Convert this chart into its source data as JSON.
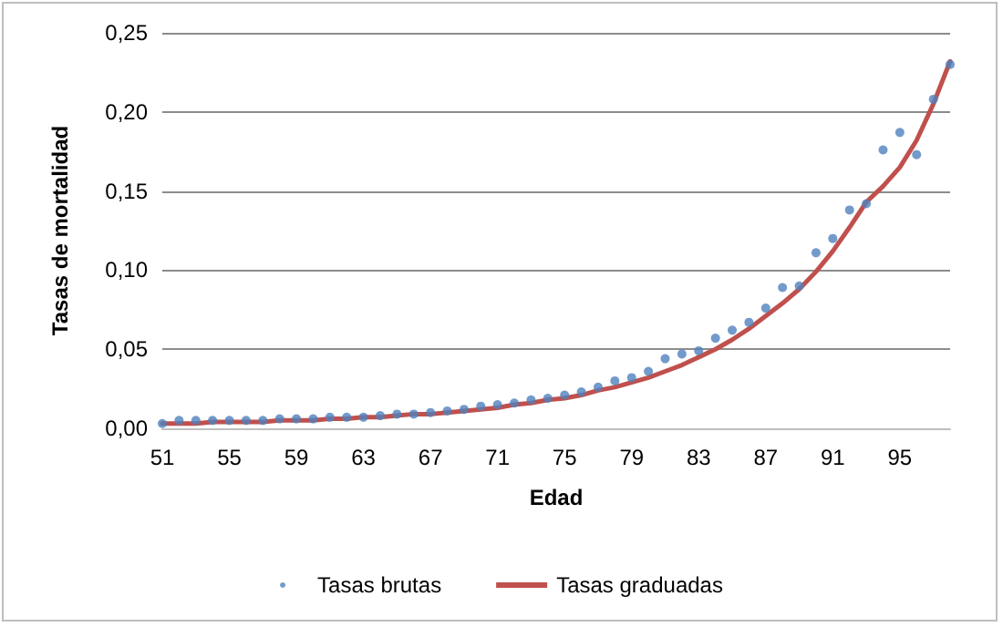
{
  "chart_data": {
    "type": "scatter",
    "xlabel": "Edad",
    "ylabel": "Tasas de mortalidad",
    "categories": [
      "51",
      null,
      null,
      null,
      "55",
      null,
      null,
      null,
      "59",
      null,
      null,
      null,
      "63",
      null,
      null,
      null,
      "67",
      null,
      null,
      null,
      "71",
      null,
      null,
      null,
      "75",
      null,
      null,
      null,
      "79",
      null,
      null,
      null,
      "83",
      null,
      null,
      null,
      "87",
      null,
      null,
      null,
      "91",
      null,
      null,
      null,
      "95",
      null,
      null,
      null
    ],
    "series": [
      {
        "name": "Tasas brutas",
        "marker": "circle",
        "color": "#4f81bd",
        "values": [
          0.003,
          0.005,
          0.005,
          0.005,
          0.005,
          0.005,
          0.005,
          0.006,
          0.006,
          0.006,
          0.007,
          0.007,
          0.007,
          0.008,
          0.009,
          0.009,
          0.01,
          0.011,
          0.012,
          0.014,
          0.015,
          0.016,
          0.018,
          0.019,
          0.021,
          0.023,
          0.026,
          0.03,
          0.032,
          0.036,
          0.044,
          0.047,
          0.049,
          0.057,
          0.062,
          0.067,
          0.076,
          0.089,
          0.09,
          0.111,
          0.12,
          0.138,
          0.142,
          0.176,
          0.187,
          0.173,
          0.208,
          0.23
        ]
      },
      {
        "name": "Tasas graduadas",
        "type": "line",
        "marker": "none",
        "line_style": "solid",
        "color": "#c0504d",
        "values": [
          0.003,
          0.003,
          0.003,
          0.004,
          0.004,
          0.004,
          0.004,
          0.005,
          0.005,
          0.005,
          0.006,
          0.006,
          0.007,
          0.007,
          0.008,
          0.009,
          0.009,
          0.01,
          0.011,
          0.012,
          0.013,
          0.015,
          0.016,
          0.018,
          0.019,
          0.021,
          0.024,
          0.026,
          0.029,
          0.032,
          0.036,
          0.04,
          0.045,
          0.05,
          0.056,
          0.063,
          0.071,
          0.079,
          0.088,
          0.099,
          0.112,
          0.127,
          0.143,
          0.153,
          0.165,
          0.182,
          0.205,
          0.232
        ]
      }
    ],
    "ylim": [
      0,
      0.25
    ],
    "yticks": [
      {
        "value": 0,
        "label": "0,00"
      },
      {
        "value": 0.05,
        "label": "0,05"
      },
      {
        "value": 0.1,
        "label": "0,10"
      },
      {
        "value": 0.15,
        "label": "0,15"
      },
      {
        "value": 0.2,
        "label": "0,20"
      },
      {
        "value": 0.25,
        "label": "0,25"
      }
    ],
    "grid": "y",
    "legend": "bottom"
  }
}
